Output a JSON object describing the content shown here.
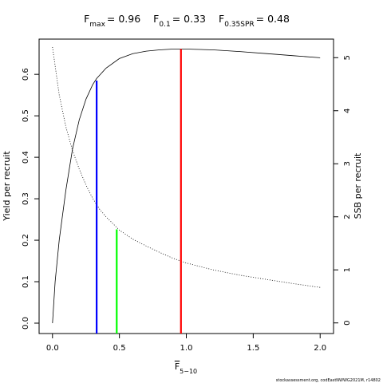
{
  "chart_data": {
    "type": "line",
    "title_parts": [
      {
        "main": "F",
        "sub": "max",
        "value": "= 0.96"
      },
      {
        "main": "F",
        "sub": "0.1",
        "value": "= 0.33"
      },
      {
        "main": "F",
        "sub": "0.35SPR",
        "value": "= 0.48"
      }
    ],
    "xlabel": {
      "main": "F",
      "sub": "5−10"
    },
    "ylabel_left": "Yield per recruit",
    "ylabel_right": "SSB per recruit",
    "xlim": [
      -0.1,
      2.1
    ],
    "ylim_left": [
      -0.025,
      0.685
    ],
    "ylim_right": [
      -0.2,
      5.35
    ],
    "x_ticks": [
      0,
      0.5,
      1,
      1.5,
      2
    ],
    "x_tick_labels": [
      "0.0",
      "0.5",
      "1.0",
      "1.5",
      "2.0"
    ],
    "y_left_ticks": [
      0,
      0.1,
      0.2,
      0.3,
      0.4,
      0.5,
      0.6
    ],
    "y_left_tick_labels": [
      "0.0",
      "0.1",
      "0.2",
      "0.3",
      "0.4",
      "0.5",
      "0.6"
    ],
    "y_right_ticks": [
      0,
      1,
      2,
      3,
      4,
      5
    ],
    "y_right_tick_labels": [
      "0",
      "1",
      "2",
      "3",
      "4",
      "5"
    ],
    "series": [
      {
        "axis": "left",
        "style": "solid",
        "x": [
          0,
          0.02,
          0.05,
          0.1,
          0.15,
          0.2,
          0.25,
          0.3,
          0.33,
          0.4,
          0.5,
          0.6,
          0.7,
          0.8,
          0.9,
          0.96,
          1.0,
          1.2,
          1.4,
          1.6,
          1.8,
          2.0
        ],
        "y": [
          0,
          0.1,
          0.2,
          0.32,
          0.42,
          0.49,
          0.54,
          0.575,
          0.59,
          0.615,
          0.638,
          0.65,
          0.656,
          0.659,
          0.661,
          0.661,
          0.661,
          0.659,
          0.655,
          0.65,
          0.645,
          0.64
        ]
      },
      {
        "axis": "right",
        "style": "dotted",
        "x": [
          0,
          0.05,
          0.1,
          0.15,
          0.2,
          0.25,
          0.3,
          0.35,
          0.4,
          0.5,
          0.6,
          0.7,
          0.8,
          0.9,
          1.0,
          1.2,
          1.4,
          1.6,
          1.8,
          2.0
        ],
        "y": [
          5.2,
          4.3,
          3.7,
          3.25,
          2.9,
          2.6,
          2.35,
          2.15,
          2.0,
          1.75,
          1.58,
          1.45,
          1.33,
          1.22,
          1.13,
          1.0,
          0.9,
          0.82,
          0.74,
          0.67
        ]
      }
    ],
    "reference_lines": [
      {
        "x": 0.96,
        "y": 0.661,
        "color": "#ff0000"
      },
      {
        "x": 0.33,
        "y": 0.585,
        "color": "#0000ff"
      },
      {
        "x": 0.48,
        "y": 0.226,
        "color": "#00ff00"
      }
    ]
  },
  "footer": "stockassessment.org, codEastNWWG2021M, r14802"
}
